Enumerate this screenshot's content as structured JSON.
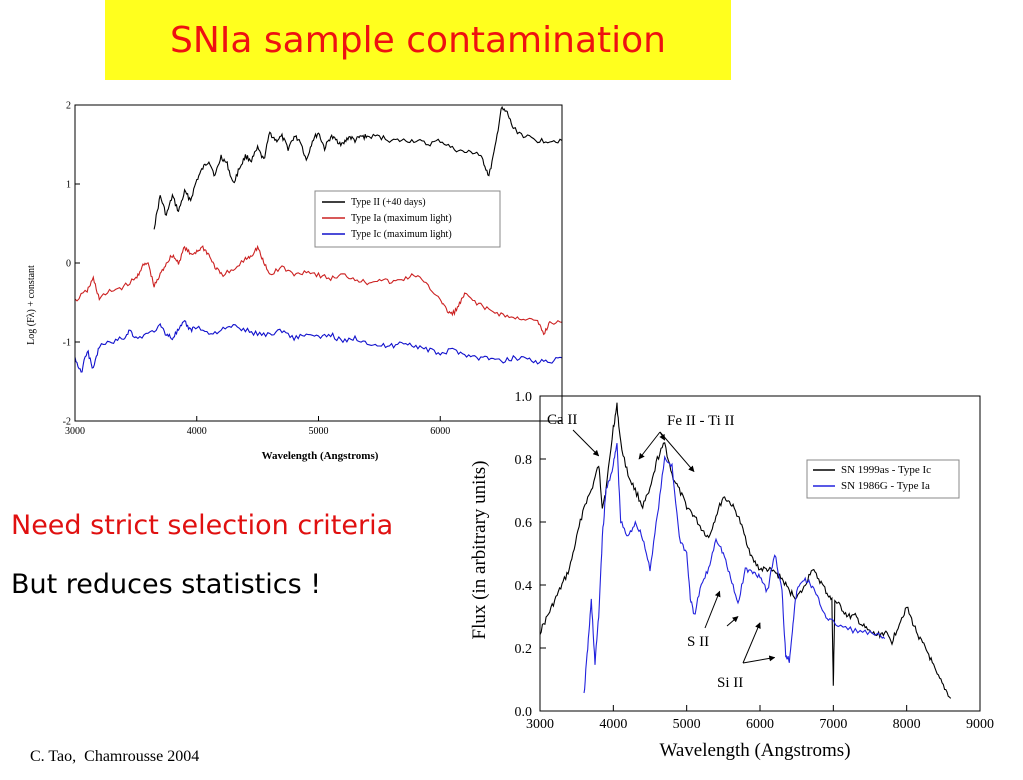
{
  "slide": {
    "title": "SNIa sample contamination",
    "bullet_1": "Need strict selection criteria",
    "bullet_2": "But reduces statistics !",
    "credit": "C. Tao,  Chamrousse 2004"
  },
  "colors": {
    "title_background": "#ffff1e",
    "title_text": "#ee1111",
    "bullet_1": "#e01010",
    "type_ii": "#000000",
    "type_ia": "#cc2222",
    "type_ic": "#1111cc"
  },
  "chart_data": [
    {
      "type": "line",
      "xlabel": "Wavelength (Angstroms)",
      "ylabel": "Log (Fλ) + constant",
      "xlim": [
        3000,
        7000
      ],
      "ylim": [
        -2,
        2
      ],
      "xticks": [
        3000,
        4000,
        5000,
        6000
      ],
      "yticks": [
        -2,
        -1,
        0,
        1,
        2
      ],
      "legend_position": "upper-right",
      "series": [
        {
          "name": "Type II (+40 days)",
          "color": "#000000",
          "points": [
            [
              3650,
              0.45
            ],
            [
              3700,
              0.85
            ],
            [
              3750,
              0.6
            ],
            [
              3800,
              0.85
            ],
            [
              3850,
              0.65
            ],
            [
              3900,
              0.9
            ],
            [
              3950,
              0.8
            ],
            [
              4000,
              1.05
            ],
            [
              4050,
              1.2
            ],
            [
              4100,
              1.3
            ],
            [
              4150,
              1.1
            ],
            [
              4200,
              1.35
            ],
            [
              4250,
              1.25
            ],
            [
              4300,
              1.0
            ],
            [
              4350,
              1.2
            ],
            [
              4400,
              1.35
            ],
            [
              4450,
              1.3
            ],
            [
              4500,
              1.45
            ],
            [
              4550,
              1.3
            ],
            [
              4600,
              1.65
            ],
            [
              4650,
              1.55
            ],
            [
              4700,
              1.6
            ],
            [
              4750,
              1.45
            ],
            [
              4800,
              1.6
            ],
            [
              4850,
              1.55
            ],
            [
              4900,
              1.3
            ],
            [
              4950,
              1.55
            ],
            [
              5000,
              1.65
            ],
            [
              5050,
              1.45
            ],
            [
              5100,
              1.6
            ],
            [
              5150,
              1.55
            ],
            [
              5200,
              1.5
            ],
            [
              5250,
              1.6
            ],
            [
              5300,
              1.55
            ],
            [
              5350,
              1.6
            ],
            [
              5400,
              1.6
            ],
            [
              5500,
              1.6
            ],
            [
              5600,
              1.55
            ],
            [
              5700,
              1.55
            ],
            [
              5800,
              1.55
            ],
            [
              5900,
              1.5
            ],
            [
              6000,
              1.55
            ],
            [
              6100,
              1.45
            ],
            [
              6200,
              1.4
            ],
            [
              6300,
              1.4
            ],
            [
              6350,
              1.3
            ],
            [
              6400,
              1.1
            ],
            [
              6450,
              1.45
            ],
            [
              6500,
              1.95
            ],
            [
              6550,
              1.9
            ],
            [
              6600,
              1.7
            ],
            [
              6700,
              1.6
            ],
            [
              6800,
              1.55
            ],
            [
              6900,
              1.55
            ],
            [
              7000,
              1.55
            ]
          ]
        },
        {
          "name": "Type Ia (maximum light)",
          "color": "#cc2222",
          "points": [
            [
              3000,
              -0.48
            ],
            [
              3100,
              -0.35
            ],
            [
              3150,
              -0.2
            ],
            [
              3200,
              -0.45
            ],
            [
              3300,
              -0.35
            ],
            [
              3400,
              -0.3
            ],
            [
              3500,
              -0.2
            ],
            [
              3550,
              -0.05
            ],
            [
              3600,
              0.0
            ],
            [
              3650,
              -0.3
            ],
            [
              3700,
              -0.15
            ],
            [
              3750,
              0.0
            ],
            [
              3800,
              0.1
            ],
            [
              3850,
              0.0
            ],
            [
              3900,
              0.2
            ],
            [
              3950,
              0.1
            ],
            [
              4000,
              0.15
            ],
            [
              4050,
              0.2
            ],
            [
              4100,
              0.1
            ],
            [
              4150,
              -0.05
            ],
            [
              4200,
              -0.15
            ],
            [
              4300,
              -0.1
            ],
            [
              4400,
              0.05
            ],
            [
              4450,
              0.1
            ],
            [
              4500,
              0.2
            ],
            [
              4550,
              0.0
            ],
            [
              4600,
              -0.15
            ],
            [
              4700,
              -0.05
            ],
            [
              4800,
              -0.15
            ],
            [
              4900,
              -0.1
            ],
            [
              5000,
              -0.15
            ],
            [
              5100,
              -0.2
            ],
            [
              5200,
              -0.15
            ],
            [
              5300,
              -0.2
            ],
            [
              5400,
              -0.25
            ],
            [
              5500,
              -0.2
            ],
            [
              5600,
              -0.25
            ],
            [
              5700,
              -0.2
            ],
            [
              5800,
              -0.15
            ],
            [
              5900,
              -0.3
            ],
            [
              6000,
              -0.45
            ],
            [
              6050,
              -0.6
            ],
            [
              6100,
              -0.65
            ],
            [
              6150,
              -0.55
            ],
            [
              6200,
              -0.4
            ],
            [
              6300,
              -0.5
            ],
            [
              6400,
              -0.6
            ],
            [
              6500,
              -0.65
            ],
            [
              6600,
              -0.7
            ],
            [
              6700,
              -0.7
            ],
            [
              6800,
              -0.75
            ],
            [
              6850,
              -0.9
            ],
            [
              6900,
              -0.75
            ],
            [
              7000,
              -0.75
            ]
          ]
        },
        {
          "name": "Type Ic (maximum light)",
          "color": "#1111cc",
          "points": [
            [
              3000,
              -1.2
            ],
            [
              3050,
              -1.4
            ],
            [
              3100,
              -1.1
            ],
            [
              3150,
              -1.35
            ],
            [
              3200,
              -1.05
            ],
            [
              3300,
              -1.0
            ],
            [
              3400,
              -0.95
            ],
            [
              3450,
              -0.85
            ],
            [
              3500,
              -0.95
            ],
            [
              3600,
              -0.9
            ],
            [
              3700,
              -0.8
            ],
            [
              3750,
              -0.9
            ],
            [
              3800,
              -0.95
            ],
            [
              3850,
              -0.85
            ],
            [
              3900,
              -0.75
            ],
            [
              3950,
              -0.85
            ],
            [
              4000,
              -0.8
            ],
            [
              4100,
              -0.9
            ],
            [
              4200,
              -0.85
            ],
            [
              4300,
              -0.8
            ],
            [
              4400,
              -0.85
            ],
            [
              4500,
              -0.9
            ],
            [
              4600,
              -0.9
            ],
            [
              4700,
              -0.85
            ],
            [
              4800,
              -0.95
            ],
            [
              4900,
              -0.9
            ],
            [
              5000,
              -0.95
            ],
            [
              5100,
              -0.9
            ],
            [
              5200,
              -1.0
            ],
            [
              5300,
              -0.95
            ],
            [
              5400,
              -1.0
            ],
            [
              5500,
              -1.05
            ],
            [
              5600,
              -1.05
            ],
            [
              5700,
              -1.0
            ],
            [
              5800,
              -1.05
            ],
            [
              5900,
              -1.1
            ],
            [
              6000,
              -1.15
            ],
            [
              6100,
              -1.1
            ],
            [
              6200,
              -1.15
            ],
            [
              6300,
              -1.2
            ],
            [
              6400,
              -1.2
            ],
            [
              6500,
              -1.25
            ],
            [
              6600,
              -1.2
            ],
            [
              6700,
              -1.2
            ],
            [
              6800,
              -1.25
            ],
            [
              6900,
              -1.25
            ],
            [
              7000,
              -1.2
            ]
          ]
        }
      ]
    },
    {
      "type": "line",
      "xlabel": "Wavelength (Angstroms)",
      "ylabel": "Flux (in arbitrary units)",
      "xlim": [
        3000,
        9000
      ],
      "ylim": [
        0.0,
        1.0
      ],
      "xticks": [
        3000,
        4000,
        5000,
        6000,
        7000,
        8000,
        9000
      ],
      "yticks": [
        0.0,
        0.2,
        0.4,
        0.6,
        0.8,
        1.0
      ],
      "legend_position": "upper-right",
      "annotations": [
        "Ca II",
        "Fe II - Ti II",
        "S II",
        "Si II"
      ],
      "series": [
        {
          "name": "SN 1999as - Type Ic",
          "color": "#000000",
          "points": [
            [
              3000,
              0.25
            ],
            [
              3100,
              0.3
            ],
            [
              3200,
              0.35
            ],
            [
              3300,
              0.4
            ],
            [
              3400,
              0.45
            ],
            [
              3500,
              0.55
            ],
            [
              3600,
              0.65
            ],
            [
              3700,
              0.7
            ],
            [
              3800,
              0.78
            ],
            [
              3850,
              0.65
            ],
            [
              3900,
              0.7
            ],
            [
              4000,
              0.9
            ],
            [
              4050,
              0.97
            ],
            [
              4100,
              0.85
            ],
            [
              4200,
              0.75
            ],
            [
              4300,
              0.7
            ],
            [
              4400,
              0.65
            ],
            [
              4500,
              0.7
            ],
            [
              4600,
              0.8
            ],
            [
              4700,
              0.85
            ],
            [
              4800,
              0.75
            ],
            [
              4900,
              0.7
            ],
            [
              5000,
              0.65
            ],
            [
              5100,
              0.62
            ],
            [
              5200,
              0.58
            ],
            [
              5300,
              0.55
            ],
            [
              5400,
              0.62
            ],
            [
              5500,
              0.68
            ],
            [
              5600,
              0.66
            ],
            [
              5700,
              0.62
            ],
            [
              5800,
              0.55
            ],
            [
              5900,
              0.48
            ],
            [
              6000,
              0.45
            ],
            [
              6100,
              0.45
            ],
            [
              6200,
              0.44
            ],
            [
              6300,
              0.42
            ],
            [
              6400,
              0.38
            ],
            [
              6500,
              0.36
            ],
            [
              6600,
              0.39
            ],
            [
              6700,
              0.45
            ],
            [
              6800,
              0.42
            ],
            [
              6900,
              0.38
            ],
            [
              6980,
              0.35
            ],
            [
              7000,
              0.08
            ],
            [
              7020,
              0.35
            ],
            [
              7100,
              0.33
            ],
            [
              7200,
              0.3
            ],
            [
              7300,
              0.3
            ],
            [
              7400,
              0.27
            ],
            [
              7500,
              0.25
            ],
            [
              7600,
              0.24
            ],
            [
              7700,
              0.25
            ],
            [
              7800,
              0.22
            ],
            [
              7900,
              0.28
            ],
            [
              8000,
              0.33
            ],
            [
              8100,
              0.27
            ],
            [
              8200,
              0.22
            ],
            [
              8300,
              0.18
            ],
            [
              8400,
              0.12
            ],
            [
              8500,
              0.08
            ],
            [
              8600,
              0.04
            ]
          ]
        },
        {
          "name": "SN 1986G - Type Ia",
          "color": "#2222dd",
          "points": [
            [
              3600,
              0.05
            ],
            [
              3650,
              0.2
            ],
            [
              3700,
              0.35
            ],
            [
              3750,
              0.15
            ],
            [
              3800,
              0.3
            ],
            [
              3850,
              0.55
            ],
            [
              3900,
              0.7
            ],
            [
              4000,
              0.78
            ],
            [
              4050,
              0.85
            ],
            [
              4100,
              0.6
            ],
            [
              4200,
              0.55
            ],
            [
              4300,
              0.6
            ],
            [
              4400,
              0.55
            ],
            [
              4500,
              0.45
            ],
            [
              4600,
              0.62
            ],
            [
              4700,
              0.8
            ],
            [
              4800,
              0.78
            ],
            [
              4900,
              0.55
            ],
            [
              5000,
              0.5
            ],
            [
              5050,
              0.36
            ],
            [
              5100,
              0.3
            ],
            [
              5200,
              0.4
            ],
            [
              5300,
              0.45
            ],
            [
              5400,
              0.55
            ],
            [
              5500,
              0.5
            ],
            [
              5600,
              0.42
            ],
            [
              5700,
              0.34
            ],
            [
              5800,
              0.45
            ],
            [
              5900,
              0.44
            ],
            [
              6000,
              0.43
            ],
            [
              6100,
              0.38
            ],
            [
              6200,
              0.5
            ],
            [
              6300,
              0.38
            ],
            [
              6350,
              0.18
            ],
            [
              6400,
              0.16
            ],
            [
              6450,
              0.28
            ],
            [
              6500,
              0.38
            ],
            [
              6600,
              0.42
            ],
            [
              6700,
              0.4
            ],
            [
              6800,
              0.35
            ],
            [
              6900,
              0.3
            ],
            [
              7000,
              0.28
            ],
            [
              7200,
              0.26
            ],
            [
              7400,
              0.25
            ],
            [
              7600,
              0.24
            ],
            [
              7700,
              0.23
            ]
          ]
        }
      ]
    }
  ]
}
